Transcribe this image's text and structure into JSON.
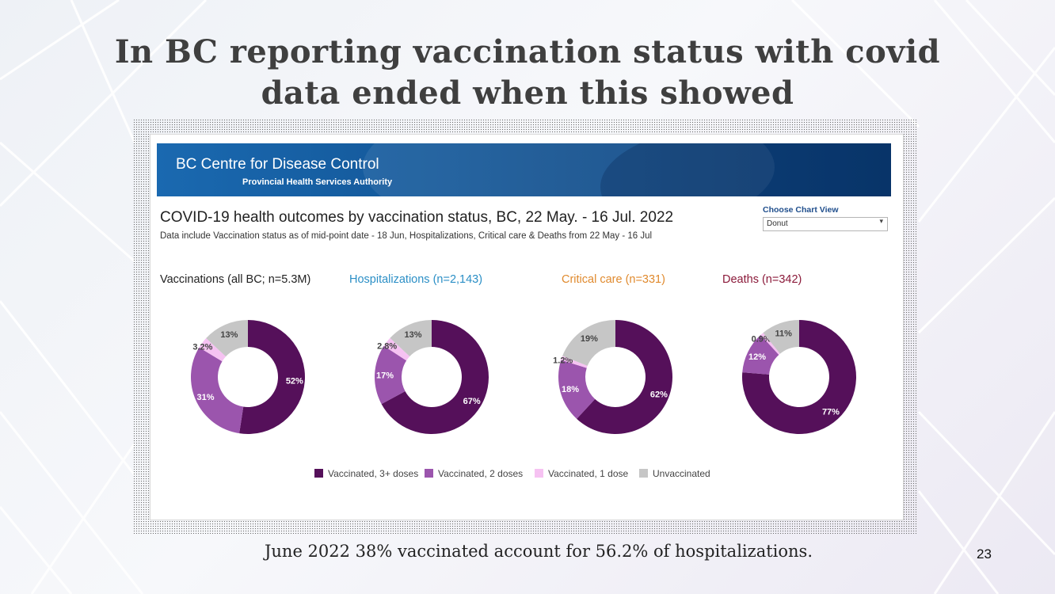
{
  "slide": {
    "title": "In BC reporting vaccination status with covid data ended when this showed",
    "footer": "June 2022 38% vaccinated account for 56.2% of hospitalizations.",
    "page_number": "23"
  },
  "banner": {
    "title": "BC Centre for Disease Control",
    "subtitle": "Provincial Health Services Authority"
  },
  "dashboard": {
    "title": "COVID-19 health outcomes by vaccination status, BC,  22 May. - 16 Jul. 2022",
    "subtitle": "Data include Vaccination status as of mid-point date - 18 Jun, Hospitalizations, Critical care & Deaths from 22 May - 16 Jul"
  },
  "control": {
    "label": "Choose Chart View",
    "value": "Donut"
  },
  "colors": {
    "vaccinated_3plus": "#55105a",
    "vaccinated_2": "#9b55ad",
    "vaccinated_1": "#f6c2f2",
    "unvaccinated": "#c6c6c6",
    "vaccinations_title": "#222222",
    "hospitalizations_title": "#2b8fc6",
    "critical_care_title": "#e08a2e",
    "deaths_title": "#8b1a3a"
  },
  "chart_data": [
    {
      "type": "pie",
      "title": "Vaccinations (all BC; n=5.3M)",
      "categories": [
        "Vaccinated, 3+ doses",
        "Vaccinated, 2 doses",
        "Vaccinated, 1 dose",
        "Unvaccinated"
      ],
      "values": [
        52,
        31,
        3.2,
        13
      ],
      "labels": [
        "52%",
        "31%",
        "3.2%",
        "13%"
      ]
    },
    {
      "type": "pie",
      "title": "Hospitalizations (n=2,143)",
      "categories": [
        "Vaccinated, 3+ doses",
        "Vaccinated, 2 doses",
        "Vaccinated, 1 dose",
        "Unvaccinated"
      ],
      "values": [
        67,
        17,
        2.8,
        13
      ],
      "labels": [
        "67%",
        "17%",
        "2.8%",
        "13%"
      ]
    },
    {
      "type": "pie",
      "title": "Critical care (n=331)",
      "categories": [
        "Vaccinated, 3+ doses",
        "Vaccinated, 2 doses",
        "Vaccinated, 1 dose",
        "Unvaccinated"
      ],
      "values": [
        62,
        18,
        1.2,
        19
      ],
      "labels": [
        "62%",
        "18%",
        "1.2%",
        "19%"
      ]
    },
    {
      "type": "pie",
      "title": "Deaths (n=342)",
      "categories": [
        "Vaccinated, 3+ doses",
        "Vaccinated, 2 doses",
        "Vaccinated, 1 dose",
        "Unvaccinated"
      ],
      "values": [
        77,
        12,
        0.9,
        11
      ],
      "labels": [
        "77%",
        "12%",
        "0.9%",
        "11%"
      ]
    }
  ],
  "legend": [
    "Vaccinated, 3+ doses",
    "Vaccinated, 2 doses",
    "Vaccinated, 1 dose",
    "Unvaccinated"
  ]
}
